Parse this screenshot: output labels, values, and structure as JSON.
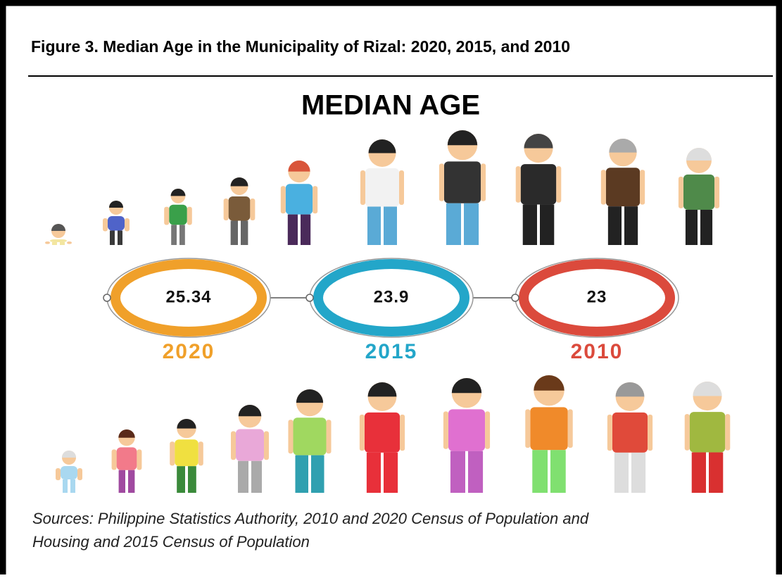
{
  "figure_title": "Figure 3. Median Age in the Municipality of Rizal: 2020, 2015, and 2010",
  "heading": "MEDIAN AGE",
  "items": [
    {
      "value": "25.34",
      "year": "2020",
      "color": "#f0a02a"
    },
    {
      "value": "23.9",
      "year": "2015",
      "color": "#23a6c9"
    },
    {
      "value": "23",
      "year": "2010",
      "color": "#db4a3c"
    }
  ],
  "source": [
    "Sources: Philippine Statistics Authority, 2010 and 2020 Census of Population and",
    "Housing and 2015 Census of Population"
  ]
}
